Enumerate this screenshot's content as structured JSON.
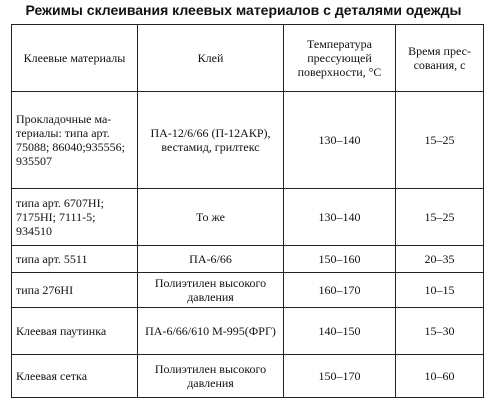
{
  "title": "Режимы склеивания клеевых материалов с деталями одежды",
  "table": {
    "headers": {
      "material": "Клеевые материалы",
      "glue": "Клей",
      "temperature": "Температура прессующей поверхности, °С",
      "time": "Время прес­сования, с"
    },
    "rows": [
      {
        "material": "Прокладочные ма­териалы: типа арт. 75088; 86040;935556; 935507",
        "glue": "ПА-12/6/66 (П-12АКР), вестамид, грилтекс",
        "temperature": "130–140",
        "time": "15–25"
      },
      {
        "material": "типа арт. 6707НI; 7175НI; 7111-5; 934510",
        "glue": "То же",
        "temperature": "130–140",
        "time": "15–25"
      },
      {
        "material": "типа арт. 5511",
        "glue": "ПА-6/66",
        "temperature": "150–160",
        "time": "20–35"
      },
      {
        "material": "типа 276НI",
        "glue": "Полиэтилен высоко­го давления",
        "temperature": "160–170",
        "time": "10–15"
      },
      {
        "material": "Клеевая паутинка",
        "glue": "ПА-6/66/610 М-995(ФРГ)",
        "temperature": "140–150",
        "time": "15–30"
      },
      {
        "material": "Клеевая сетка",
        "glue": "Полиэтилен высоко­го давления",
        "temperature": "150–170",
        "time": "10–60"
      }
    ]
  }
}
